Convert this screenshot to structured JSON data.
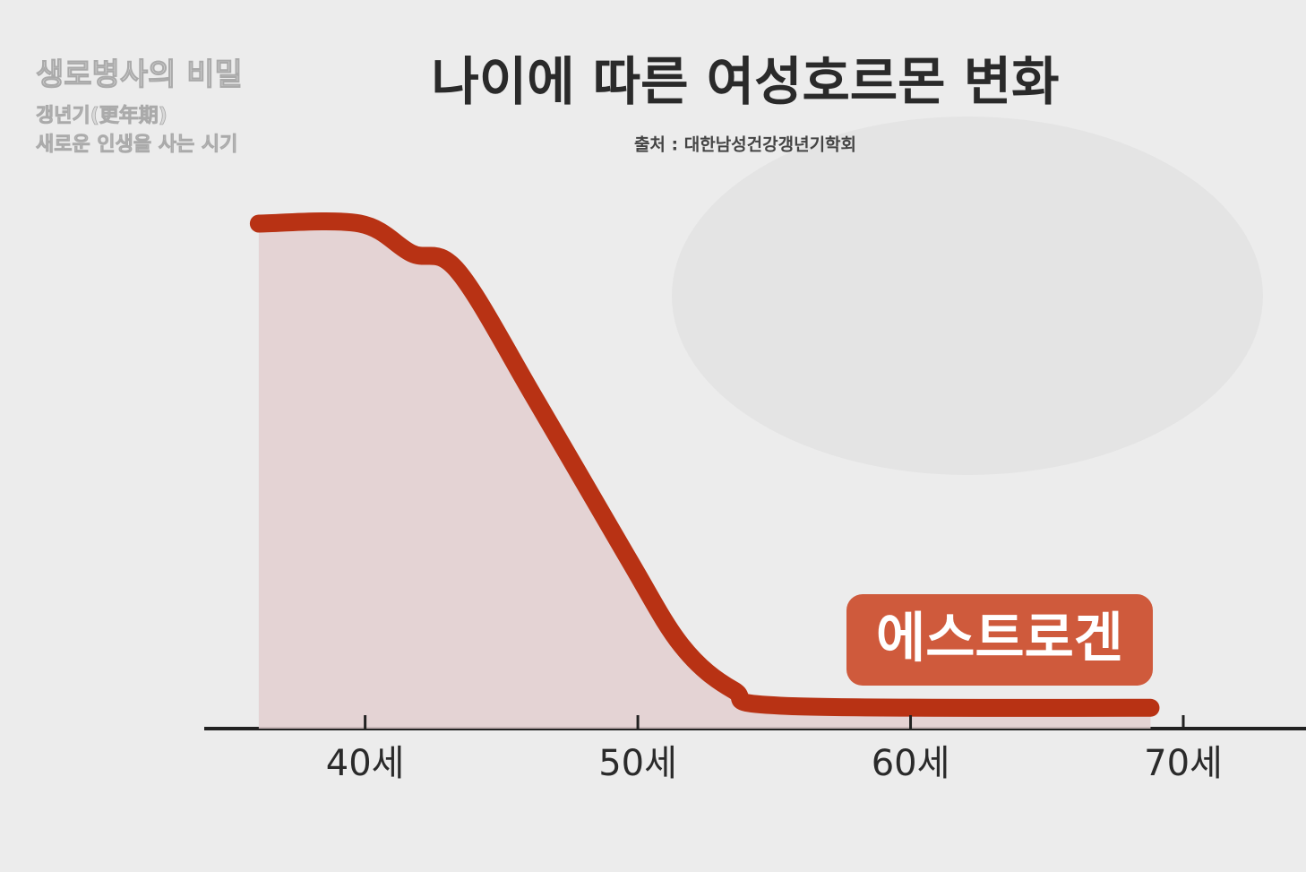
{
  "program": {
    "title": "생로병사의 비밀",
    "line1": "갱년기(更年期)",
    "line2": "새로운 인생을 사는 시기"
  },
  "chart_data": {
    "type": "area",
    "title": "나이에 따른 여성호르몬 변화",
    "subtitle": "출처 : 대한남성건강갱년기학회",
    "x": [
      36.1,
      39.8,
      41.7,
      43.4,
      46.3,
      49.6,
      51.6,
      53.5,
      55.5,
      68.8
    ],
    "series": [
      {
        "name": "에스트로겐",
        "color": "#b83214",
        "values": [
          85,
          85,
          80,
          77,
          55,
          29,
          14,
          6.5,
          3.8,
          3.5
        ]
      }
    ],
    "area_color": "#e3cfd0",
    "xlim": [
      34.1,
      74.5
    ],
    "xticks": [
      {
        "value": 40,
        "label": "40세"
      },
      {
        "value": 50,
        "label": "50세"
      },
      {
        "value": 60,
        "label": "60세"
      },
      {
        "value": 70,
        "label": "70세"
      }
    ],
    "ylim": [
      0,
      100
    ]
  }
}
